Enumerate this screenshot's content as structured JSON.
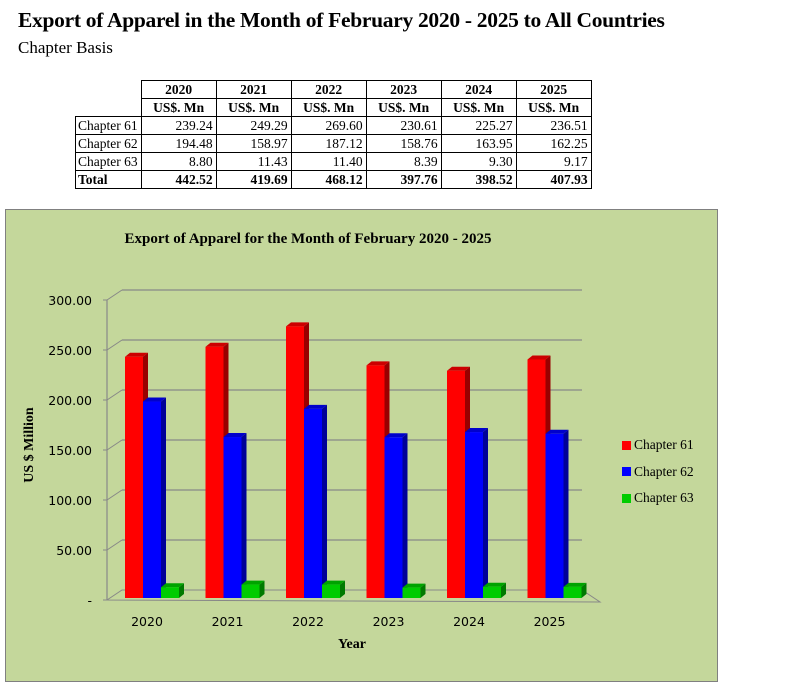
{
  "header": {
    "title": "Export of Apparel in the Month of February 2020 - 2025 to All Countries",
    "subtitle": "Chapter Basis"
  },
  "table": {
    "years": [
      "2020",
      "2021",
      "2022",
      "2023",
      "2024",
      "2025"
    ],
    "unit": "US$. Mn",
    "rows": [
      {
        "label": "Chapter 61",
        "values": [
          "239.24",
          "249.29",
          "269.60",
          "230.61",
          "225.27",
          "236.51"
        ]
      },
      {
        "label": "Chapter 62",
        "values": [
          "194.48",
          "158.97",
          "187.12",
          "158.76",
          "163.95",
          "162.25"
        ]
      },
      {
        "label": "Chapter 63",
        "values": [
          "8.80",
          "11.43",
          "11.40",
          "8.39",
          "9.30",
          "9.17"
        ]
      }
    ],
    "total": {
      "label": "Total",
      "values": [
        "442.52",
        "419.69",
        "468.12",
        "397.76",
        "398.52",
        "407.93"
      ]
    }
  },
  "chart_data": {
    "type": "bar",
    "title": "Export of Apparel for the Month of February 2020 - 2025",
    "xlabel": "Year",
    "ylabel": "US $ Million",
    "categories": [
      "2020",
      "2021",
      "2022",
      "2023",
      "2024",
      "2025"
    ],
    "series": [
      {
        "name": "Chapter 61",
        "color": "#ff0000",
        "values": [
          239.24,
          249.29,
          269.6,
          230.61,
          225.27,
          236.51
        ]
      },
      {
        "name": "Chapter 62",
        "color": "#0000ff",
        "values": [
          194.48,
          158.97,
          187.12,
          158.76,
          163.95,
          162.25
        ]
      },
      {
        "name": "Chapter 63",
        "color": "#00cc00",
        "values": [
          8.8,
          11.43,
          11.4,
          8.39,
          9.3,
          9.17
        ]
      }
    ],
    "ylim": [
      0,
      300
    ],
    "yticks": [
      "-",
      "50.00",
      "100.00",
      "150.00",
      "200.00",
      "250.00",
      "300.00"
    ],
    "grid": true,
    "legend": "right",
    "background": "#c4d79b"
  }
}
